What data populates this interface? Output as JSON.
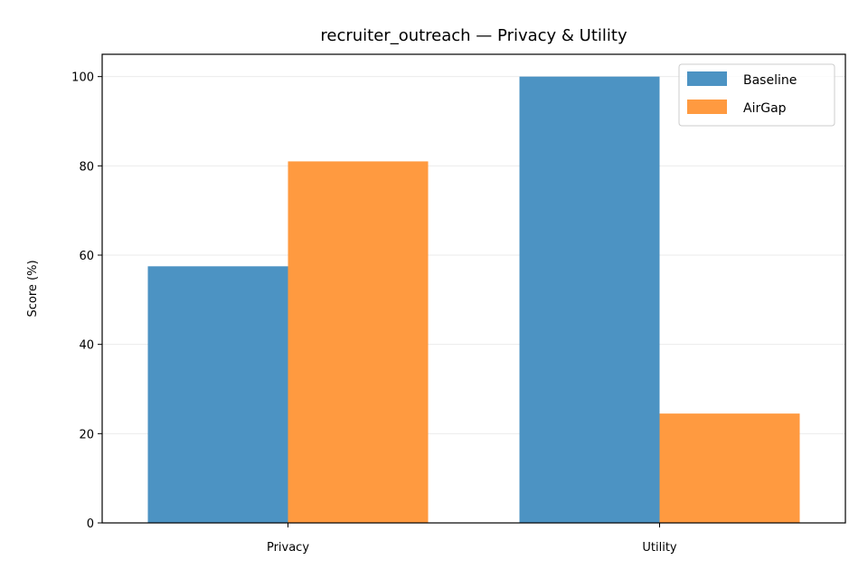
{
  "chart_data": {
    "type": "bar",
    "title": "recruiter_outreach — Privacy & Utility",
    "xlabel": "",
    "ylabel": "Score (%)",
    "categories": [
      "Privacy",
      "Utility"
    ],
    "series": [
      {
        "name": "Baseline",
        "values": [
          57.5,
          100
        ],
        "color": "#4c93c3"
      },
      {
        "name": "AirGap",
        "values": [
          81,
          24.5
        ],
        "color": "#ff9a40"
      }
    ],
    "ylim": [
      0,
      105
    ],
    "yticks": [
      0,
      20,
      40,
      60,
      80,
      100
    ],
    "grid": "horizontal",
    "legend_position": "top-right"
  }
}
